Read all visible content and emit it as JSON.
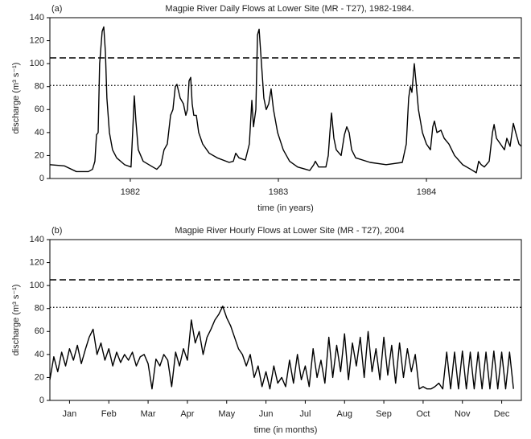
{
  "chart_data": [
    {
      "type": "line",
      "panel": "(a)",
      "title": "Magpie River Daily Flows at Lower Site (MR - T27), 1982-1984.",
      "xlabel": "time (in years)",
      "ylabel": "discharge (m³ s⁻¹)",
      "xlim": [
        1981.457,
        1984.641
      ],
      "xticks": [
        1982,
        1983,
        1984
      ],
      "ylim": [
        0,
        140
      ],
      "yticks": [
        0,
        20,
        40,
        60,
        80,
        100,
        120,
        140
      ],
      "reference_lines": [
        {
          "value": 105,
          "style": "dashed"
        },
        {
          "value": 81,
          "style": "dotted"
        }
      ],
      "series": [
        {
          "color": "#000000",
          "x": [
            1981.457,
            1981.554,
            1981.636,
            1981.717,
            1981.745,
            1981.761,
            1981.772,
            1981.783,
            1981.793,
            1981.81,
            1981.821,
            1981.832,
            1981.842,
            1981.859,
            1981.88,
            1981.908,
            1981.962,
            1982.005,
            1982.016,
            1982.027,
            1982.038,
            1982.054,
            1982.087,
            1982.152,
            1982.179,
            1982.207,
            1982.228,
            1982.25,
            1982.272,
            1982.288,
            1982.304,
            1982.315,
            1982.337,
            1982.359,
            1982.375,
            1982.386,
            1982.397,
            1982.408,
            1982.418,
            1982.429,
            1982.446,
            1982.462,
            1982.489,
            1982.533,
            1982.587,
            1982.668,
            1982.696,
            1982.712,
            1982.734,
            1982.777,
            1982.804,
            1982.821,
            1982.832,
            1982.848,
            1982.859,
            1982.87,
            1982.886,
            1982.902,
            1982.918,
            1982.935,
            1982.951,
            1982.967,
            1982.995,
            1983.033,
            1983.076,
            1983.13,
            1983.212,
            1983.239,
            1983.25,
            1983.272,
            1983.321,
            1983.337,
            1983.348,
            1983.359,
            1983.375,
            1983.391,
            1983.424,
            1983.446,
            1983.462,
            1983.478,
            1983.495,
            1983.522,
            1983.62,
            1983.728,
            1983.837,
            1983.864,
            1983.88,
            1983.891,
            1983.902,
            1983.918,
            1983.929,
            1983.946,
            1983.973,
            1984.0,
            1984.027,
            1984.043,
            1984.054,
            1984.071,
            1984.098,
            1984.12,
            1984.152,
            1984.19,
            1984.245,
            1984.299,
            1984.337,
            1984.353,
            1984.37,
            1984.391,
            1984.424,
            1984.446,
            1984.457,
            1984.473,
            1984.5,
            1984.527,
            1984.543,
            1984.565,
            1984.587,
            1984.603,
            1984.625,
            1984.641
          ],
          "values": [
            12,
            11,
            6,
            6,
            8,
            15,
            38,
            40,
            100,
            128,
            132,
            110,
            70,
            40,
            25,
            18,
            12,
            10,
            40,
            72,
            50,
            25,
            15,
            10,
            8,
            12,
            25,
            30,
            55,
            60,
            80,
            82,
            70,
            65,
            55,
            60,
            85,
            88,
            65,
            55,
            55,
            40,
            30,
            22,
            18,
            14,
            15,
            22,
            18,
            16,
            30,
            68,
            45,
            60,
            125,
            130,
            100,
            70,
            60,
            65,
            78,
            60,
            40,
            25,
            15,
            10,
            7,
            12,
            15,
            10,
            10,
            20,
            40,
            57,
            35,
            25,
            20,
            38,
            45,
            40,
            25,
            18,
            14,
            12,
            14,
            30,
            70,
            80,
            75,
            100,
            85,
            60,
            40,
            30,
            25,
            45,
            50,
            40,
            42,
            35,
            30,
            20,
            12,
            8,
            5,
            15,
            12,
            10,
            15,
            40,
            47,
            35,
            30,
            25,
            35,
            28,
            48,
            40,
            30,
            28
          ]
        }
      ]
    },
    {
      "type": "line",
      "panel": "(b)",
      "title": "Magpie River Hourly Flows at Lower Site (MR - T27), 2004",
      "xlabel": "time (in months)",
      "ylabel": "discharge (m³ s⁻¹)",
      "xlim": [
        0,
        12
      ],
      "xticks": [
        {
          "value": 0.5,
          "label": "Jan"
        },
        {
          "value": 1.5,
          "label": "Feb"
        },
        {
          "value": 2.5,
          "label": "Mar"
        },
        {
          "value": 3.5,
          "label": "Apr"
        },
        {
          "value": 4.5,
          "label": "May"
        },
        {
          "value": 5.5,
          "label": "Jun"
        },
        {
          "value": 6.5,
          "label": "Jul"
        },
        {
          "value": 7.5,
          "label": "Aug"
        },
        {
          "value": 8.5,
          "label": "Sep"
        },
        {
          "value": 9.5,
          "label": "Oct"
        },
        {
          "value": 10.5,
          "label": "Nov"
        },
        {
          "value": 11.5,
          "label": "Dec"
        }
      ],
      "ylim": [
        0,
        140
      ],
      "yticks": [
        0,
        20,
        40,
        60,
        80,
        100,
        120,
        140
      ],
      "reference_lines": [
        {
          "value": 105,
          "style": "dashed"
        },
        {
          "value": 81,
          "style": "dotted"
        }
      ],
      "series": [
        {
          "color": "#000000",
          "x": [
            0,
            0.1,
            0.2,
            0.3,
            0.4,
            0.5,
            0.6,
            0.7,
            0.8,
            0.9,
            1,
            1.1,
            1.2,
            1.3,
            1.4,
            1.5,
            1.6,
            1.7,
            1.8,
            1.9,
            2,
            2.1,
            2.2,
            2.3,
            2.4,
            2.5,
            2.6,
            2.7,
            2.8,
            2.9,
            3,
            3.1,
            3.2,
            3.3,
            3.4,
            3.5,
            3.6,
            3.7,
            3.8,
            3.9,
            4,
            4.1,
            4.2,
            4.3,
            4.4,
            4.5,
            4.6,
            4.7,
            4.8,
            4.9,
            5,
            5.1,
            5.2,
            5.3,
            5.4,
            5.5,
            5.6,
            5.7,
            5.8,
            5.9,
            6,
            6.1,
            6.2,
            6.3,
            6.4,
            6.5,
            6.6,
            6.7,
            6.8,
            6.9,
            7,
            7.1,
            7.2,
            7.3,
            7.4,
            7.5,
            7.6,
            7.7,
            7.8,
            7.9,
            8,
            8.1,
            8.2,
            8.3,
            8.4,
            8.5,
            8.6,
            8.7,
            8.8,
            8.9,
            9,
            9.1,
            9.2,
            9.3,
            9.4,
            9.5,
            9.6,
            9.7,
            9.8,
            9.9,
            10,
            10.1,
            10.2,
            10.3,
            10.4,
            10.5,
            10.6,
            10.7,
            10.8,
            10.9,
            11,
            11.1,
            11.2,
            11.3,
            11.4,
            11.5,
            11.6,
            11.7,
            11.8
          ],
          "values": [
            18,
            38,
            25,
            42,
            30,
            45,
            35,
            48,
            32,
            44,
            55,
            62,
            40,
            50,
            35,
            45,
            30,
            42,
            33,
            40,
            35,
            42,
            30,
            38,
            40,
            32,
            10,
            36,
            30,
            40,
            35,
            12,
            42,
            30,
            45,
            35,
            70,
            50,
            60,
            40,
            55,
            62,
            70,
            75,
            82,
            72,
            65,
            55,
            45,
            40,
            30,
            40,
            20,
            30,
            12,
            25,
            10,
            30,
            15,
            20,
            12,
            35,
            15,
            40,
            18,
            30,
            12,
            45,
            20,
            35,
            15,
            55,
            20,
            48,
            25,
            58,
            18,
            50,
            30,
            55,
            20,
            60,
            25,
            45,
            18,
            55,
            22,
            48,
            15,
            50,
            20,
            45,
            25,
            40,
            10,
            12,
            10,
            10,
            12,
            15,
            10,
            42,
            10,
            42,
            10,
            43,
            10,
            42,
            10,
            42,
            10,
            42,
            10,
            43,
            10,
            42,
            10,
            42,
            10
          ]
        }
      ]
    }
  ]
}
